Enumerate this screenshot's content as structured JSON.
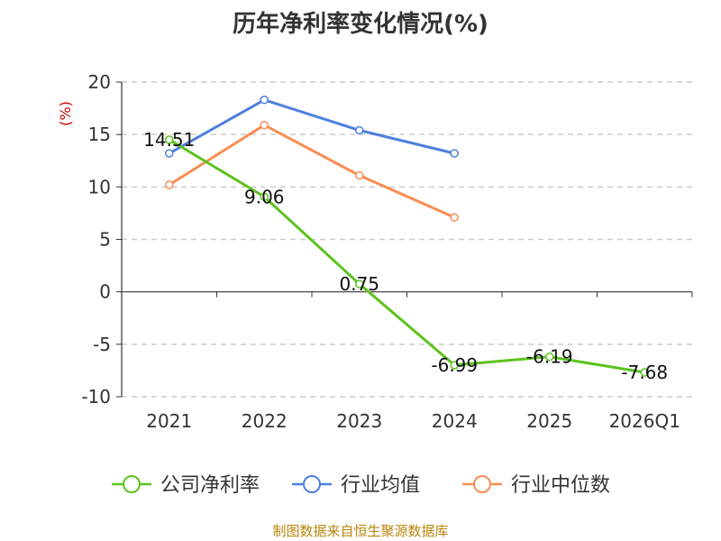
{
  "chart_data": {
    "type": "line",
    "title": "历年净利率变化情况(%)",
    "ylabel": "(%)",
    "xlabel": "",
    "categories": [
      "2021",
      "2022",
      "2023",
      "2024",
      "2025",
      "2026Q1"
    ],
    "ylim": [
      -10,
      20
    ],
    "yticks": [
      20,
      15,
      10,
      5,
      0,
      -5,
      -10
    ],
    "grid": true,
    "legend": "bottom",
    "series": [
      {
        "name": "公司净利率",
        "color": "#5dc31f",
        "values": [
          14.51,
          9.06,
          0.75,
          -6.99,
          -6.19,
          -7.68
        ],
        "labels": [
          "14.51",
          "9.06",
          "0.75",
          "-6.99",
          "-6.19",
          "-7.68"
        ]
      },
      {
        "name": "行业均值",
        "color": "#4e7fde",
        "values": [
          13.2,
          18.3,
          15.4,
          13.2,
          null,
          null
        ]
      },
      {
        "name": "行业中位数",
        "color": "#f98d52",
        "values": [
          10.2,
          15.9,
          11.1,
          7.1,
          null,
          null
        ]
      }
    ]
  },
  "source": "制图数据来自恒生聚源数据库"
}
